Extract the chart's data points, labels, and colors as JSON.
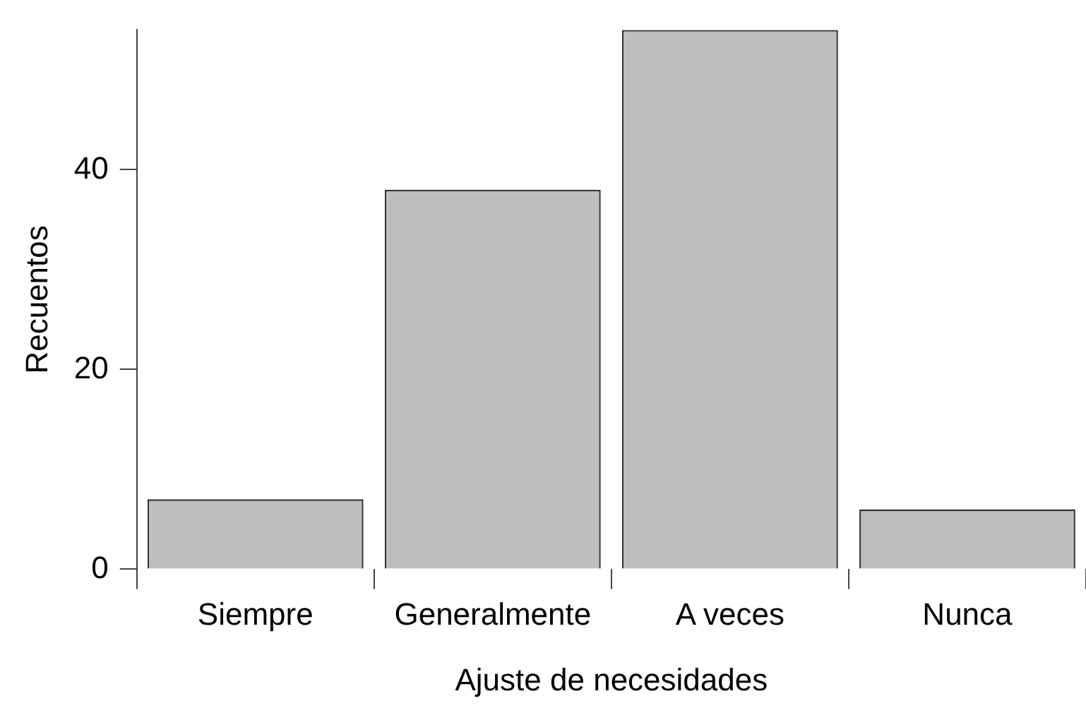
{
  "chart_data": {
    "type": "bar",
    "xlabel": "Ajuste de necesidades",
    "ylabel": "Recuentos",
    "categories": [
      "Siempre",
      "Generalmente",
      "A veces",
      "Nunca"
    ],
    "values": [
      7,
      38,
      54,
      6
    ],
    "color": "#bebebe",
    "ylim": [
      0,
      54
    ],
    "yticks": [
      0,
      20,
      40
    ],
    "grid": false
  }
}
